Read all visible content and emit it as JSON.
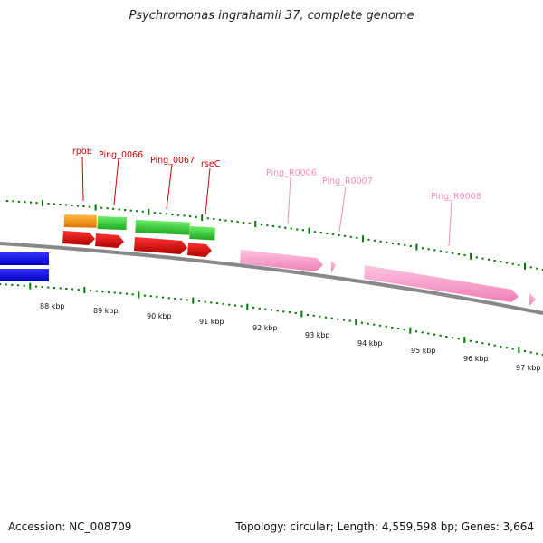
{
  "title": "Psychromonas ingrahamii 37, complete genome",
  "footer": {
    "accession": "Accession: NC_008709",
    "stats": "Topology: circular; Length: 4,559,598 bp; Genes: 3,664"
  },
  "scale_labels": [
    "88 kbp",
    "89 kbp",
    "90 kbp",
    "91 kbp",
    "92 kbp",
    "93 kbp",
    "94 kbp",
    "95 kbp",
    "96 kbp",
    "97 kbp"
  ],
  "feature_labels": {
    "rpoE": "rpoE",
    "ping_0066": "Ping_0066",
    "ping_0067": "Ping_0067",
    "rsec": "rseC",
    "ping_r0006": "Ping_R0006",
    "ping_r0007": "Ping_R0007",
    "ping_r0008": "Ping_R0008"
  },
  "colors": {
    "cds": "#ee0000",
    "gene_green": "#33cc33",
    "gene_orange": "#ff9900",
    "rrna": "#ff99cc",
    "forward_strand": "#0000ee",
    "backbone": "#888888",
    "ticks": "#007700"
  }
}
